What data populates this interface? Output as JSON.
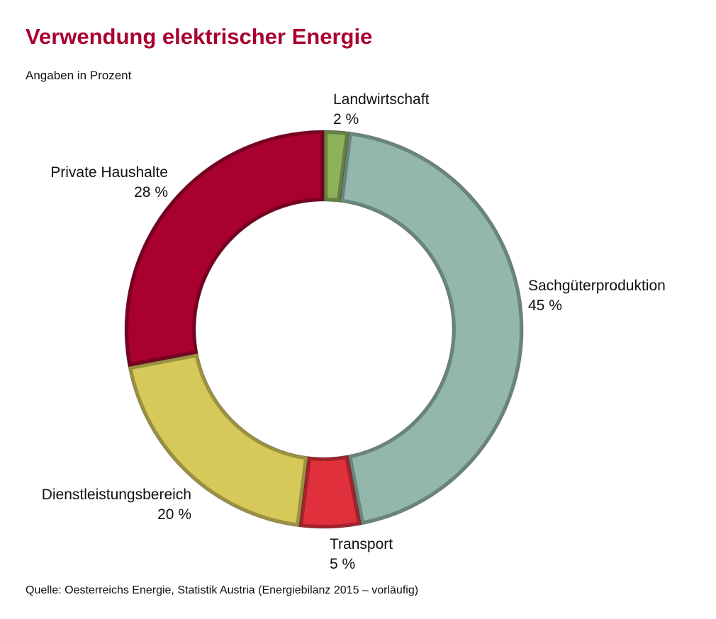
{
  "title": "Verwendung elektrischer Energie",
  "subtitle": "Angaben in Prozent",
  "source": "Quelle: Oesterreichs Energie, Statistik Austria (Energiebilanz 2015 – vorläufig)",
  "chart_data": {
    "type": "pie",
    "variant": "donut",
    "title": "Verwendung elektrischer Energie",
    "subtitle": "Angaben in Prozent",
    "start": "top, clockwise",
    "segments": [
      {
        "name": "Landwirtschaft",
        "value": 2,
        "label": "2 %",
        "color": "#8db25a"
      },
      {
        "name": "Sachgüterproduktion",
        "value": 45,
        "label": "45 %",
        "color": "#93b8ab"
      },
      {
        "name": "Transport",
        "value": 5,
        "label": "5 %",
        "color": "#e0303c"
      },
      {
        "name": "Dienstleistungsbereich",
        "value": 20,
        "label": "20 %",
        "color": "#d6c95a"
      },
      {
        "name": "Private Haushalte",
        "value": 28,
        "label": "28 %",
        "color": "#a8002f"
      }
    ]
  }
}
